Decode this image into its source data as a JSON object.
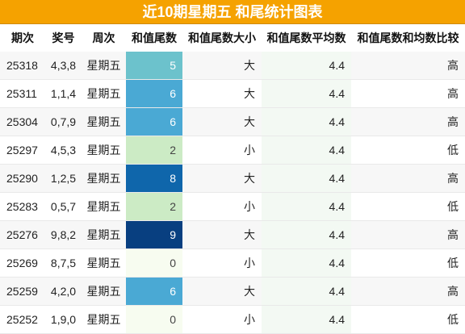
{
  "title": "近10期星期五 和尾统计图表",
  "headers": [
    "期次",
    "奖号",
    "周次",
    "和值尾数",
    "和值尾数大小",
    "和值尾数平均数",
    "和值尾数和均数比较"
  ],
  "heat_colors": {
    "0": "#f7fcf0",
    "2": "#ccebc5",
    "5": "#6cc2cc",
    "6": "#4aa9d4",
    "8": "#0f66ab",
    "9": "#083f80"
  },
  "rows": [
    {
      "period": "25318",
      "numbers": "4,3,8",
      "weekday": "星期五",
      "tail": "5",
      "size": "大",
      "avg": "4.4",
      "compare": "高"
    },
    {
      "period": "25311",
      "numbers": "1,1,4",
      "weekday": "星期五",
      "tail": "6",
      "size": "大",
      "avg": "4.4",
      "compare": "高"
    },
    {
      "period": "25304",
      "numbers": "0,7,9",
      "weekday": "星期五",
      "tail": "6",
      "size": "大",
      "avg": "4.4",
      "compare": "高"
    },
    {
      "period": "25297",
      "numbers": "4,5,3",
      "weekday": "星期五",
      "tail": "2",
      "size": "小",
      "avg": "4.4",
      "compare": "低"
    },
    {
      "period": "25290",
      "numbers": "1,2,5",
      "weekday": "星期五",
      "tail": "8",
      "size": "大",
      "avg": "4.4",
      "compare": "高"
    },
    {
      "period": "25283",
      "numbers": "0,5,7",
      "weekday": "星期五",
      "tail": "2",
      "size": "小",
      "avg": "4.4",
      "compare": "低"
    },
    {
      "period": "25276",
      "numbers": "9,8,2",
      "weekday": "星期五",
      "tail": "9",
      "size": "大",
      "avg": "4.4",
      "compare": "高"
    },
    {
      "period": "25269",
      "numbers": "8,7,5",
      "weekday": "星期五",
      "tail": "0",
      "size": "小",
      "avg": "4.4",
      "compare": "低"
    },
    {
      "period": "25259",
      "numbers": "4,2,0",
      "weekday": "星期五",
      "tail": "6",
      "size": "大",
      "avg": "4.4",
      "compare": "高"
    },
    {
      "period": "25252",
      "numbers": "1,9,0",
      "weekday": "星期五",
      "tail": "0",
      "size": "小",
      "avg": "4.4",
      "compare": "低"
    }
  ]
}
